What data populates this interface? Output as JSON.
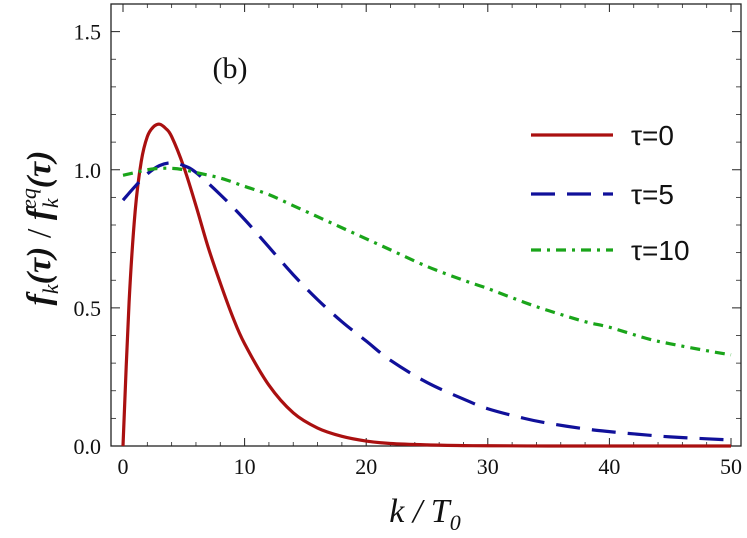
{
  "chart_data": {
    "type": "line",
    "panel_label": "(b)",
    "xlabel_parts": {
      "main": "k / T",
      "sub": "0"
    },
    "ylabel_parts": {
      "num": "f",
      "num_sub": "k",
      "num_arg": "(τ)",
      "sep": " / ",
      "den": "f",
      "den_sub": "k",
      "den_sup": "eq",
      "den_arg": "(τ)"
    },
    "xlim": [
      0,
      50
    ],
    "ylim": [
      0,
      1.6
    ],
    "x_ticks": [
      0,
      10,
      20,
      30,
      40,
      50
    ],
    "y_ticks": [
      0.0,
      0.5,
      1.0,
      1.5
    ],
    "y_tick_labels": [
      "0.0",
      "0.5",
      "1.0",
      "1.5"
    ],
    "grid": false,
    "legend_position": "top-right",
    "series": [
      {
        "name": "τ=0",
        "color": "#aa1010",
        "style": "solid",
        "x": [
          0,
          0.5,
          1,
          1.5,
          2,
          2.5,
          3,
          3.5,
          4,
          5,
          6,
          7,
          8,
          9,
          10,
          12,
          14,
          16,
          18,
          20,
          22,
          25,
          28,
          30,
          35,
          40,
          45,
          50
        ],
        "y": [
          0.0,
          0.52,
          0.85,
          1.03,
          1.12,
          1.155,
          1.165,
          1.15,
          1.12,
          1.01,
          0.87,
          0.72,
          0.59,
          0.47,
          0.37,
          0.22,
          0.12,
          0.065,
          0.035,
          0.018,
          0.009,
          0.004,
          0.0015,
          0.001,
          0.0,
          0.0,
          0.0,
          0.0
        ]
      },
      {
        "name": "τ=5",
        "color": "#10109a",
        "style": "dashed",
        "x": [
          0,
          1,
          2,
          3,
          4,
          5,
          6,
          8,
          10,
          12,
          14,
          16,
          18,
          20,
          22,
          25,
          28,
          30,
          33,
          35,
          38,
          40,
          43,
          45,
          48,
          50
        ],
        "y": [
          0.89,
          0.94,
          0.985,
          1.015,
          1.025,
          1.015,
          0.99,
          0.91,
          0.82,
          0.72,
          0.62,
          0.53,
          0.45,
          0.38,
          0.31,
          0.23,
          0.17,
          0.135,
          0.1,
          0.082,
          0.062,
          0.052,
          0.04,
          0.033,
          0.026,
          0.022
        ]
      },
      {
        "name": "τ=10",
        "color": "#1aa51a",
        "style": "dashdot",
        "x": [
          0,
          1,
          2,
          3,
          4,
          5,
          6,
          8,
          10,
          12,
          14,
          16,
          18,
          20,
          22,
          25,
          28,
          30,
          33,
          35,
          38,
          40,
          43,
          45,
          48,
          50
        ],
        "y": [
          0.98,
          0.99,
          1.0,
          1.005,
          1.005,
          1.0,
          0.99,
          0.97,
          0.94,
          0.91,
          0.87,
          0.83,
          0.79,
          0.75,
          0.71,
          0.65,
          0.6,
          0.57,
          0.52,
          0.49,
          0.45,
          0.43,
          0.39,
          0.37,
          0.345,
          0.33
        ]
      }
    ]
  }
}
